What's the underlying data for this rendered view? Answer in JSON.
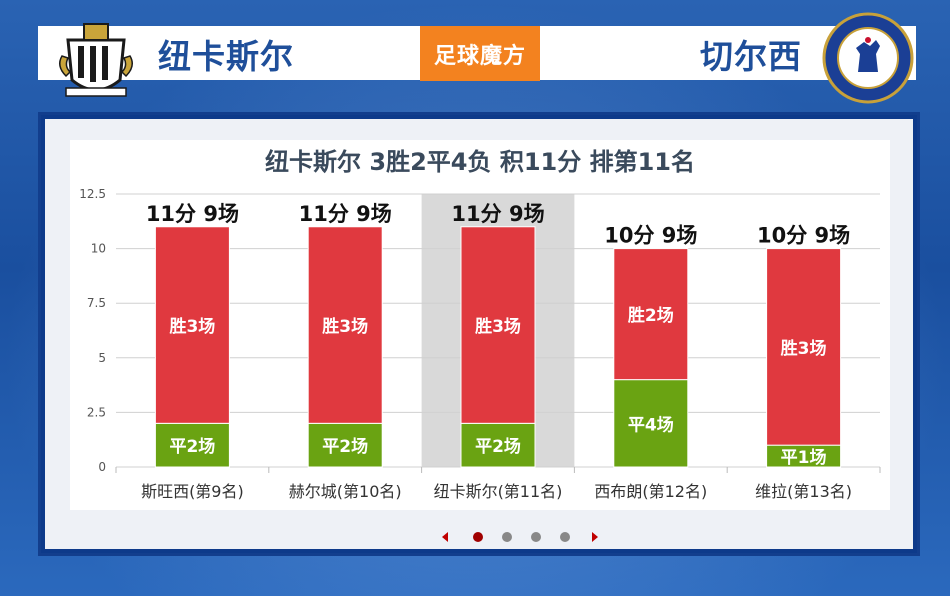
{
  "header": {
    "home_team": "纽卡斯尔",
    "away_team": "切尔西",
    "brand": "足球魔方",
    "home_logo_icon": "newcastle-united-crest-icon",
    "away_logo_icon": "chelsea-fc-crest-icon"
  },
  "colors": {
    "win": "#e0393f",
    "draw": "#6aa312",
    "highlight": "#d9d9d9",
    "title": "#3a4a5c",
    "brand": "#f3821f"
  },
  "chart_data": {
    "type": "bar",
    "stacked": true,
    "title": "纽卡斯尔 3胜2平4负 积11分 排第11名",
    "ylim": [
      0,
      12.5
    ],
    "yticks": [
      "0",
      "2.5",
      "5",
      "7.5",
      "10",
      "12.5"
    ],
    "ytick_values": [
      0,
      2.5,
      5,
      7.5,
      10,
      12.5
    ],
    "grid": true,
    "highlight_index": 2,
    "categories": [
      "斯旺西(第9名)",
      "赫尔城(第10名)",
      "纽卡斯尔(第11名)",
      "西布朗(第12名)",
      "维拉(第13名)"
    ],
    "top_labels": [
      "11分 9场",
      "11分 9场",
      "11分 9场",
      "10分 9场",
      "10分 9场"
    ],
    "series": [
      {
        "key": "draw",
        "values": [
          2,
          2,
          2,
          4,
          1
        ],
        "labels": [
          "平2场",
          "平2场",
          "平2场",
          "平4场",
          "平1场"
        ]
      },
      {
        "key": "win",
        "values": [
          9,
          9,
          9,
          6,
          9
        ],
        "labels": [
          "胜3场",
          "胜3场",
          "胜3场",
          "胜2场",
          "胜3场"
        ]
      }
    ]
  },
  "pagination": {
    "pages": 4,
    "active": 1,
    "prev_icon": "triangle-left-icon",
    "next_icon": "triangle-right-icon"
  }
}
